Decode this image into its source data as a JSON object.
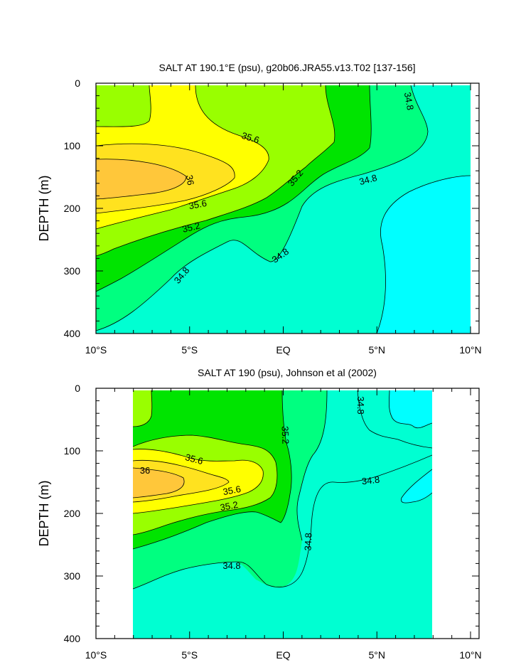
{
  "chart_data": [
    {
      "type": "contour",
      "title": "SALT AT 190.1°E (psu), g20b06.JRA55.v13.T02 [137-156]",
      "ylabel": "DEPTH (m)",
      "xlabel": "",
      "x_ticks": [
        "10°S",
        "5°S",
        "EQ",
        "5°N",
        "10°N"
      ],
      "y_ticks": [
        "0",
        "100",
        "200",
        "300",
        "400"
      ],
      "xlim": [
        -10,
        10
      ],
      "ylim": [
        400,
        0
      ],
      "contour_levels": [
        34.8,
        35.0,
        35.2,
        35.4,
        35.6,
        35.8,
        36.0
      ],
      "contour_labels": [
        {
          "text": "35.6"
        },
        {
          "text": "36"
        },
        {
          "text": "35.6"
        },
        {
          "text": "35.2"
        },
        {
          "text": "35.2"
        },
        {
          "text": "34.8"
        },
        {
          "text": "34.8"
        },
        {
          "text": "34.8"
        },
        {
          "text": "34.8"
        }
      ]
    },
    {
      "type": "contour",
      "title": "SALT AT 190 (psu), Johnson et al (2002)",
      "ylabel": "DEPTH (m)",
      "xlabel": "",
      "x_ticks": [
        "10°S",
        "5°S",
        "EQ",
        "5°N",
        "10°N"
      ],
      "y_ticks": [
        "0",
        "100",
        "200",
        "300",
        "400"
      ],
      "xlim": [
        -10,
        10
      ],
      "ylim": [
        400,
        0
      ],
      "data_extent_x": [
        -8,
        8
      ],
      "contour_levels": [
        34.8,
        35.0,
        35.2,
        35.4,
        35.6,
        35.8,
        36.0
      ],
      "contour_labels": [
        {
          "text": "35.6"
        },
        {
          "text": "36"
        },
        {
          "text": "35.6"
        },
        {
          "text": "35.2"
        },
        {
          "text": "35.2"
        },
        {
          "text": "34.8"
        },
        {
          "text": "34.8"
        },
        {
          "text": "34.8"
        },
        {
          "text": "34.8"
        }
      ]
    }
  ],
  "colors": {
    "c348_minus": "#00ffff",
    "c348_350": "#00ffd2",
    "c350_352": "#00ff80",
    "c352_354": "#00e400",
    "c354_356": "#99ff00",
    "c356_358": "#ffff00",
    "c358_360": "#ffe21f",
    "c360_plus": "#ffc73a"
  }
}
